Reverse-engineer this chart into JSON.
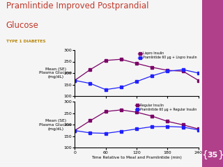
{
  "title_line1": "Pramlintide Improved Postprandial",
  "title_line2": "Glucose",
  "subtitle": "TYPE 1 DIABETES",
  "title_color": "#c0392b",
  "subtitle_color": "#b8860b",
  "bg_color": "#f5f5f5",
  "xlabel": "Time Relative to Meal and Pramlintide (min)",
  "ylim": [
    100,
    300
  ],
  "xlim": [
    0,
    240
  ],
  "xticks": [
    0,
    60,
    120,
    180,
    240
  ],
  "yticks": [
    100,
    150,
    200,
    250,
    300
  ],
  "top_lispro_x": [
    0,
    30,
    60,
    90,
    120,
    150,
    180,
    210,
    240
  ],
  "top_lispro_y": [
    168,
    215,
    255,
    260,
    242,
    225,
    212,
    208,
    168
  ],
  "top_pramlispro_x": [
    0,
    30,
    60,
    90,
    120,
    150,
    180,
    210,
    240
  ],
  "top_pramlispro_y": [
    168,
    155,
    128,
    138,
    163,
    188,
    208,
    215,
    200
  ],
  "bot_regular_x": [
    0,
    30,
    60,
    90,
    120,
    150,
    180,
    210,
    240
  ],
  "bot_regular_y": [
    175,
    218,
    258,
    265,
    255,
    238,
    215,
    200,
    182
  ],
  "bot_pramregular_x": [
    0,
    30,
    60,
    90,
    120,
    150,
    180,
    210,
    240
  ],
  "bot_pramregular_y": [
    175,
    165,
    163,
    172,
    182,
    192,
    193,
    190,
    178
  ],
  "lispro_color": "#7b0067",
  "pramlispro_color": "#2020ff",
  "regular_color": "#7b0067",
  "pramregular_color": "#2020ff",
  "legend1_0": "Lispro Insulin",
  "legend1_1": "Pramlintide 60 μg + Lispro Insulin",
  "legend2_0": "Regular Insulin",
  "legend2_1": "Pramlintide 60 μg + Regular Insulin",
  "slide_num": "35",
  "right_panel_color": "#b0408a"
}
